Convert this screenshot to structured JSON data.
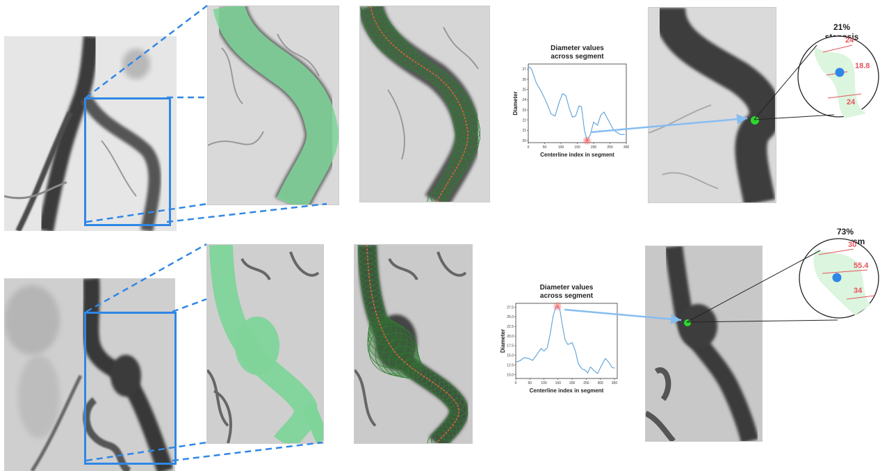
{
  "colors": {
    "accent_blue": "#2f87e6",
    "segmentation_green": "#7fd49a",
    "centerline_red": "#e0643a",
    "circle_green": "#2e7d32",
    "measure_red": "#e5545b",
    "marker_green": "#2bd92b",
    "arrow_blue": "#86bdf0",
    "curve_blue": "#5aa0d8"
  },
  "rows": [
    {
      "id": "stenosis",
      "annotation_title": "21% stenosis",
      "measurements": {
        "proximal": "24",
        "minimum": "18.8",
        "distal": "24"
      },
      "chart_data": {
        "type": "line",
        "title": "Diameter values across segment",
        "title_lines": [
          "Diameter values",
          "across segment"
        ],
        "xlabel": "Centerline index in segment",
        "ylabel": "Diameter",
        "xlim": [
          0,
          300
        ],
        "ylim": [
          19.8,
          27.5
        ],
        "xticks": [
          0,
          50,
          100,
          150,
          200,
          250,
          300
        ],
        "yticks": [
          20,
          21,
          22,
          23,
          24,
          25,
          26,
          27
        ],
        "highlight": {
          "x": 180,
          "y": 20.0
        },
        "series": [
          {
            "values": [
              {
                "x": 0,
                "y": 27.3
              },
              {
                "x": 10,
                "y": 27.0
              },
              {
                "x": 25,
                "y": 25.6
              },
              {
                "x": 40,
                "y": 24.8
              },
              {
                "x": 55,
                "y": 23.8
              },
              {
                "x": 70,
                "y": 22.6
              },
              {
                "x": 82,
                "y": 22.4
              },
              {
                "x": 95,
                "y": 23.8
              },
              {
                "x": 105,
                "y": 24.6
              },
              {
                "x": 115,
                "y": 24.4
              },
              {
                "x": 125,
                "y": 23.2
              },
              {
                "x": 135,
                "y": 22.3
              },
              {
                "x": 145,
                "y": 22.4
              },
              {
                "x": 155,
                "y": 23.4
              },
              {
                "x": 163,
                "y": 23.3
              },
              {
                "x": 172,
                "y": 21.0
              },
              {
                "x": 180,
                "y": 20.0
              },
              {
                "x": 190,
                "y": 20.6
              },
              {
                "x": 200,
                "y": 21.8
              },
              {
                "x": 212,
                "y": 21.5
              },
              {
                "x": 222,
                "y": 22.5
              },
              {
                "x": 232,
                "y": 22.8
              },
              {
                "x": 245,
                "y": 22.0
              },
              {
                "x": 262,
                "y": 21.0
              },
              {
                "x": 282,
                "y": 20.6
              },
              {
                "x": 296,
                "y": 20.6
              }
            ]
          }
        ]
      }
    },
    {
      "id": "aneurysm",
      "annotation_title": "73% aneurysm",
      "measurements": {
        "proximal": "30",
        "maximum": "55.4",
        "distal": "34"
      },
      "chart_data": {
        "type": "line",
        "title": "Diameter values across segment",
        "title_lines": [
          "Diameter values",
          "across segment"
        ],
        "xlabel": "Centerline index in segment",
        "ylabel": "Diameter",
        "xlim": [
          0,
          360
        ],
        "ylim": [
          9,
          28.5
        ],
        "xticks": [
          0,
          50,
          100,
          150,
          200,
          250,
          300,
          350
        ],
        "yticks": [
          10.0,
          12.5,
          15.0,
          17.5,
          20.0,
          22.5,
          25.0,
          27.5
        ],
        "ytick_labels": [
          "10.0",
          "12.5",
          "15.0",
          "17.5",
          "20.0",
          "22.5",
          "25.0",
          "27.5"
        ],
        "highlight": {
          "x": 148,
          "y": 27.7
        },
        "series": [
          {
            "values": [
              {
                "x": 0,
                "y": 13.2
              },
              {
                "x": 15,
                "y": 13.6
              },
              {
                "x": 30,
                "y": 14.4
              },
              {
                "x": 45,
                "y": 14.2
              },
              {
                "x": 60,
                "y": 13.7
              },
              {
                "x": 75,
                "y": 15.2
              },
              {
                "x": 90,
                "y": 16.8
              },
              {
                "x": 100,
                "y": 16.1
              },
              {
                "x": 112,
                "y": 17.0
              },
              {
                "x": 122,
                "y": 20.5
              },
              {
                "x": 132,
                "y": 25.0
              },
              {
                "x": 140,
                "y": 27.2
              },
              {
                "x": 148,
                "y": 27.7
              },
              {
                "x": 156,
                "y": 27.0
              },
              {
                "x": 165,
                "y": 23.0
              },
              {
                "x": 175,
                "y": 19.0
              },
              {
                "x": 185,
                "y": 17.8
              },
              {
                "x": 200,
                "y": 18.3
              },
              {
                "x": 212,
                "y": 16.0
              },
              {
                "x": 222,
                "y": 12.8
              },
              {
                "x": 235,
                "y": 11.5
              },
              {
                "x": 245,
                "y": 11.2
              },
              {
                "x": 255,
                "y": 10.4
              },
              {
                "x": 265,
                "y": 12.0
              },
              {
                "x": 275,
                "y": 11.2
              },
              {
                "x": 290,
                "y": 10.3
              },
              {
                "x": 305,
                "y": 12.5
              },
              {
                "x": 318,
                "y": 14.2
              },
              {
                "x": 330,
                "y": 13.2
              },
              {
                "x": 342,
                "y": 11.8
              },
              {
                "x": 352,
                "y": 11.7
              }
            ]
          }
        ]
      }
    }
  ]
}
